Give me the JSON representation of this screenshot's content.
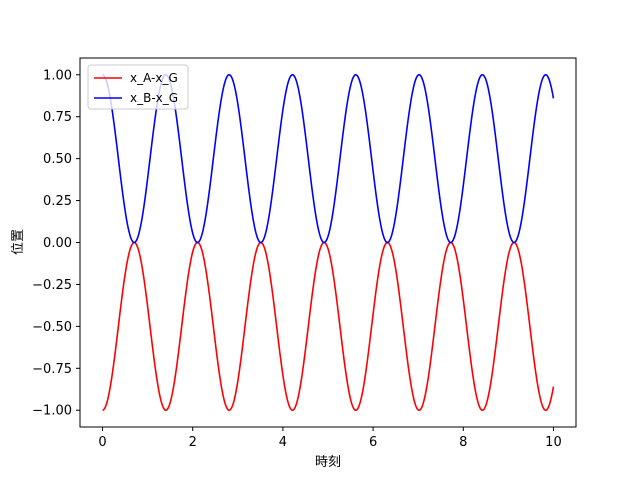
{
  "chart_data": {
    "type": "line",
    "title": "",
    "xlabel": "時刻",
    "ylabel": "位置",
    "xlim": [
      -0.5,
      10.5
    ],
    "ylim": [
      -1.1,
      1.1
    ],
    "xticks": [
      0,
      2,
      4,
      6,
      8,
      10
    ],
    "yticks": [
      -1.0,
      -0.75,
      -0.5,
      -0.25,
      0.0,
      0.25,
      0.5,
      0.75,
      1.0
    ],
    "xtick_labels": [
      "0",
      "2",
      "4",
      "6",
      "8",
      "10"
    ],
    "ytick_labels": [
      "−1.00",
      "−0.75",
      "−0.50",
      "−0.25",
      "0.00",
      "0.25",
      "0.50",
      "0.75",
      "1.00"
    ],
    "grid": false,
    "legend_position": "upper-left",
    "x": [
      0.0,
      0.25,
      0.5,
      0.702,
      0.75,
      1.0,
      1.25,
      1.404,
      1.5,
      1.75,
      2.0,
      2.106,
      2.25,
      2.5,
      2.75,
      2.808,
      3.0,
      3.25,
      3.5,
      3.51,
      3.75,
      4.0,
      4.212,
      4.25,
      4.5,
      4.75,
      4.914,
      5.0,
      5.25,
      5.5,
      5.616,
      5.75,
      6.0,
      6.25,
      6.318,
      6.5,
      6.75,
      7.0,
      7.02,
      7.25,
      7.5,
      7.722,
      7.75,
      8.0,
      8.25,
      8.424,
      8.5,
      8.75,
      9.0,
      9.126,
      9.25,
      9.5,
      9.75,
      9.828,
      10.0
    ],
    "series": [
      {
        "name": "x_A-x_G",
        "color": "#ff0000",
        "values": [
          -1.0,
          -0.605,
          -0.051,
          0.0,
          -0.007,
          -0.466,
          -0.95,
          -1.0,
          -0.979,
          -0.741,
          -0.016,
          0.0,
          -0.221,
          -0.83,
          -0.995,
          -1.0,
          -0.783,
          -0.23,
          0.0,
          0.0,
          -0.197,
          -0.747,
          -1.0,
          -0.991,
          -0.848,
          -0.311,
          -0.0,
          -0.032,
          -0.499,
          -0.952,
          -1.0,
          -0.963,
          -0.578,
          -0.046,
          -0.0,
          -0.143,
          -0.708,
          -0.999,
          -1.0,
          -0.877,
          -0.366,
          0.0,
          -0.005,
          -0.466,
          -0.932,
          -1.0,
          -0.985,
          -0.716,
          -0.137,
          0.0,
          -0.098,
          -0.627,
          -0.995,
          -1.0,
          -0.872
        ]
      },
      {
        "name": "x_B-x_G",
        "color": "#0000ff",
        "values": [
          1.0,
          0.605,
          0.051,
          0.0,
          0.007,
          0.466,
          0.95,
          1.0,
          0.979,
          0.741,
          0.016,
          0.0,
          0.221,
          0.83,
          0.995,
          1.0,
          0.783,
          0.23,
          0.0,
          0.0,
          0.197,
          0.747,
          1.0,
          0.991,
          0.848,
          0.311,
          0.0,
          0.032,
          0.499,
          0.952,
          1.0,
          0.963,
          0.578,
          0.046,
          0.0,
          0.143,
          0.708,
          0.999,
          1.0,
          0.877,
          0.366,
          0.0,
          0.005,
          0.466,
          0.932,
          1.0,
          0.985,
          0.716,
          0.137,
          0.0,
          0.098,
          0.627,
          0.995,
          1.0,
          0.872
        ]
      }
    ]
  }
}
